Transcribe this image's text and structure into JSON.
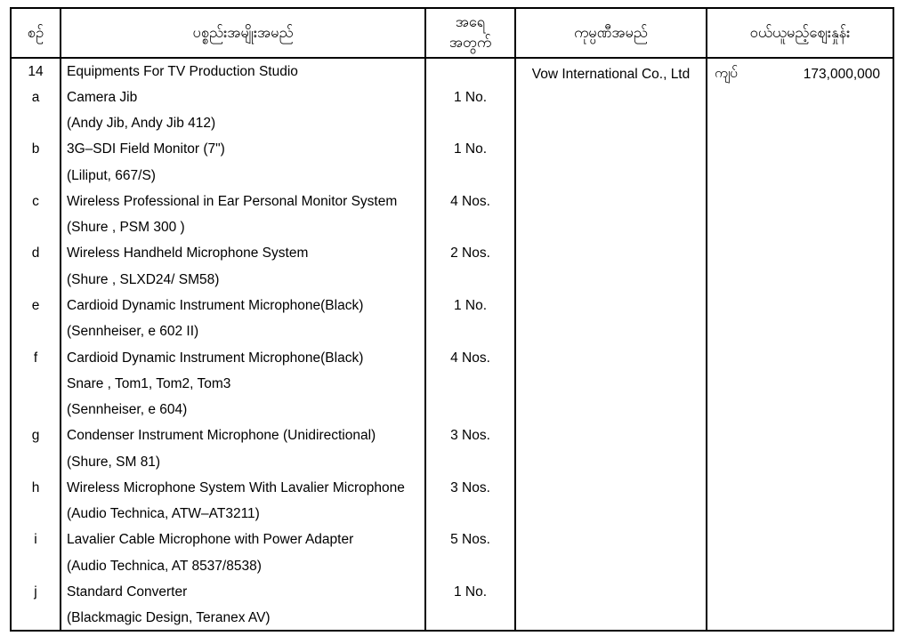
{
  "table": {
    "headers": {
      "serial": "စဉ်",
      "item": "ပစ္စည်းအမျိုးအမည်",
      "qty_line1": "အရေ",
      "qty_line2": "အတွက်",
      "company": "ကုမ္ပဏီအမည်",
      "price": "ဝယ်ယူမည့်ဈေးနှုန်း"
    },
    "company_name": "Vow International Co., Ltd",
    "currency": "ကျပ်",
    "amount": "173,000,000",
    "lines": [
      {
        "serial": "14",
        "item": "Equipments For TV Production Studio",
        "qty": ""
      },
      {
        "serial": "a",
        "item": "Camera Jib",
        "qty": "1 No."
      },
      {
        "serial": "",
        "item": "(Andy Jib, Andy Jib 412)",
        "qty": ""
      },
      {
        "serial": "b",
        "item": "3G–SDI Field Monitor (7\")",
        "qty": "1 No."
      },
      {
        "serial": "",
        "item": "(Liliput, 667/S)",
        "qty": ""
      },
      {
        "serial": "c",
        "item": "Wireless Professional in Ear Personal Monitor System",
        "qty": "4 Nos."
      },
      {
        "serial": "",
        "item": "(Shure , PSM 300 )",
        "qty": ""
      },
      {
        "serial": "d",
        "item": "Wireless Handheld Microphone System",
        "qty": "2 Nos."
      },
      {
        "serial": "",
        "item": "(Shure , SLXD24/ SM58)",
        "qty": ""
      },
      {
        "serial": "e",
        "item": "Cardioid Dynamic Instrument Microphone(Black)",
        "qty": "1 No."
      },
      {
        "serial": "",
        "item": "(Sennheiser, e 602 II)",
        "qty": ""
      },
      {
        "serial": "f",
        "item": "Cardioid Dynamic Instrument Microphone(Black)",
        "qty": "4 Nos."
      },
      {
        "serial": "",
        "item": "Snare , Tom1, Tom2, Tom3",
        "qty": ""
      },
      {
        "serial": "",
        "item": "(Sennheiser, e 604)",
        "qty": ""
      },
      {
        "serial": "g",
        "item": "Condenser Instrument Microphone (Unidirectional)",
        "qty": "3 Nos."
      },
      {
        "serial": "",
        "item": "(Shure, SM 81)",
        "qty": ""
      },
      {
        "serial": "h",
        "item": "Wireless Microphone System With Lavalier Microphone",
        "qty": "3 Nos."
      },
      {
        "serial": "",
        "item": "(Audio Technica, ATW–AT3211)",
        "qty": ""
      },
      {
        "serial": "i",
        "item": "Lavalier Cable Microphone with Power Adapter",
        "qty": "5 Nos."
      },
      {
        "serial": "",
        "item": "(Audio Technica, AT 8537/8538)",
        "qty": ""
      },
      {
        "serial": "j",
        "item": "Standard Converter",
        "qty": "1 No."
      },
      {
        "serial": "",
        "item": "(Blackmagic Design, Teranex AV)",
        "qty": ""
      }
    ]
  }
}
